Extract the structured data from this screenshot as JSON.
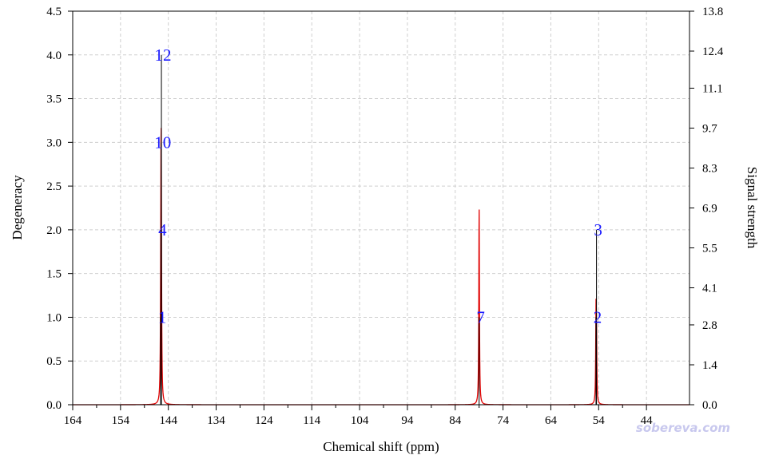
{
  "chart_data": {
    "type": "line",
    "xlabel": "Chemical shift (ppm)",
    "ylabel": "Degeneracy",
    "y2label": "Signal strength",
    "x_reversed": true,
    "xlim": [
      164,
      35
    ],
    "ylim": [
      0,
      4.5
    ],
    "y2lim": [
      0,
      13.8
    ],
    "x_ticks": [
      164,
      154,
      144,
      134,
      124,
      114,
      104,
      94,
      84,
      74,
      64,
      54,
      44
    ],
    "y_ticks": [
      0.0,
      0.5,
      1.0,
      1.5,
      2.0,
      2.5,
      3.0,
      3.5,
      4.0,
      4.5
    ],
    "y2_ticks": [
      0.0,
      1.4,
      2.8,
      4.1,
      5.5,
      6.9,
      8.3,
      9.7,
      11.1,
      12.4,
      13.8
    ],
    "y_tick_labels": [
      "0.0",
      "0.5",
      "1.0",
      "1.5",
      "2.0",
      "2.5",
      "3.0",
      "3.5",
      "4.0",
      "4.5"
    ],
    "y2_tick_labels": [
      "0.0",
      "1.4",
      "2.8",
      "4.1",
      "5.5",
      "6.9",
      "8.3",
      "9.7",
      "11.1",
      "12.4",
      "13.8"
    ],
    "grid": true,
    "line_width_ppm": 0.15,
    "series": [
      {
        "color": "#e00000",
        "peaks": [
          {
            "x": 145.6,
            "y": 1
          },
          {
            "x": 145.55,
            "y": 3
          },
          {
            "x": 145.5,
            "y": 6
          },
          {
            "x": 145.45,
            "y": 2
          },
          {
            "x": 79.0,
            "y": 7
          },
          {
            "x": 54.55,
            "y": 3
          },
          {
            "x": 54.45,
            "y": 2
          }
        ]
      }
    ],
    "sticks": [
      {
        "x": 145.6,
        "y": 1.0,
        "label": "1"
      },
      {
        "x": 145.55,
        "y": 2.0,
        "label": "4"
      },
      {
        "x": 145.5,
        "y": 3.0,
        "label": "10"
      },
      {
        "x": 145.45,
        "y": 4.0,
        "label": "12"
      },
      {
        "x": 79.0,
        "y": 1.0,
        "label": "7"
      },
      {
        "x": 54.55,
        "y": 1.0,
        "label": "2"
      },
      {
        "x": 54.45,
        "y": 2.0,
        "label": "3"
      }
    ],
    "colors": {
      "curve": "#e00000",
      "stick": "#000000",
      "label": "#1a1aff",
      "grid": "#cfcfcf",
      "watermark": "#c8c8ee"
    },
    "watermark": "sobereva.com"
  }
}
